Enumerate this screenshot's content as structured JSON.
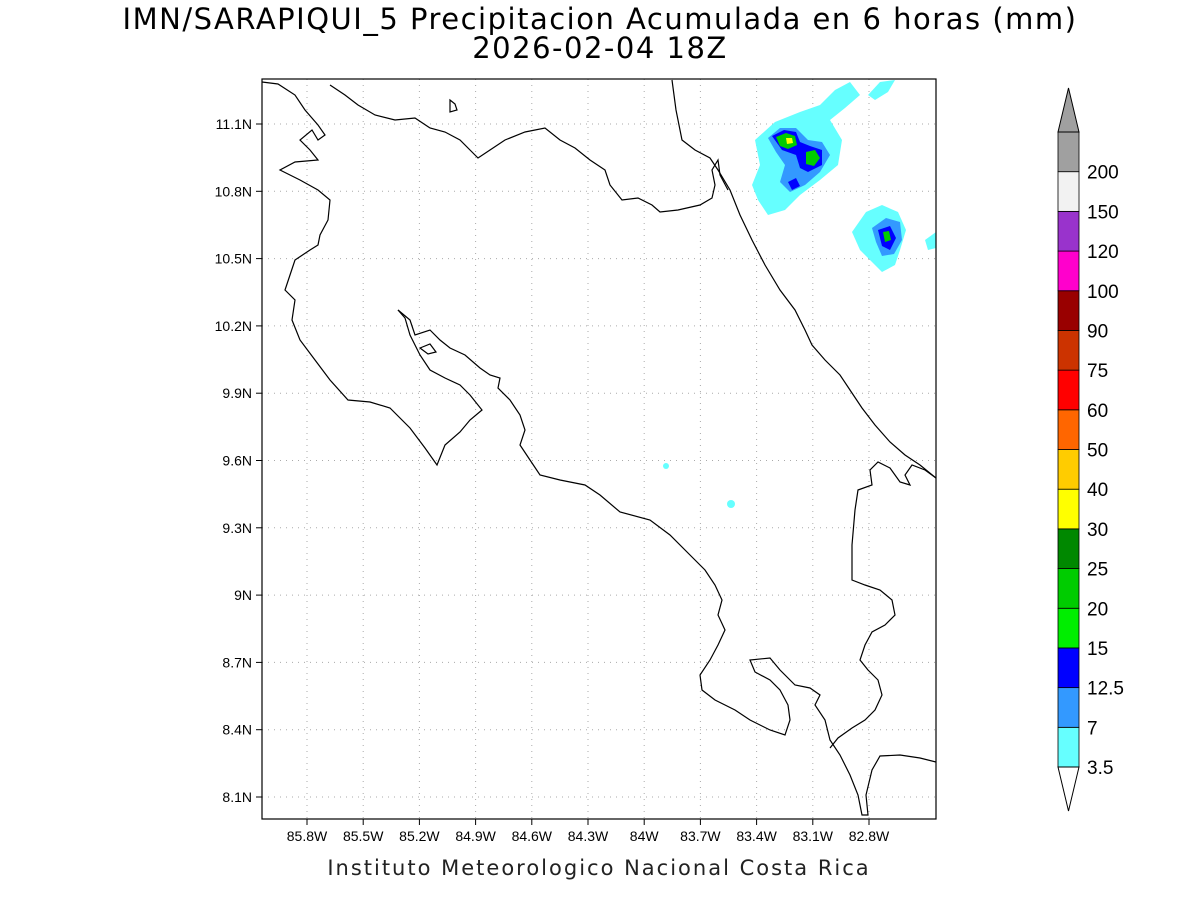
{
  "title": "IMN/SARAPIQUI_5 Precipitacion Acumulada en 6 horas (mm)",
  "subtitle": "2026-02-04 18Z",
  "footer": "Instituto Meteorologico Nacional Costa Rica",
  "axes": {
    "lon_ticks": [
      "85.8W",
      "85.5W",
      "85.2W",
      "84.9W",
      "84.6W",
      "84.3W",
      "84W",
      "83.7W",
      "83.4W",
      "83.1W",
      "82.8W"
    ],
    "lat_ticks": [
      "11.1N",
      "10.8N",
      "10.5N",
      "10.2N",
      "9.9N",
      "9.6N",
      "9.3N",
      "9N",
      "8.7N",
      "8.4N",
      "8.1N"
    ],
    "grid": "dotted"
  },
  "colorbar": {
    "levels": [
      "3.5",
      "7",
      "12.5",
      "15",
      "20",
      "25",
      "30",
      "40",
      "50",
      "60",
      "75",
      "90",
      "100",
      "120",
      "150",
      "200"
    ],
    "colors": [
      "#66ffff",
      "#3399ff",
      "#0000ff",
      "#00ee00",
      "#00cc00",
      "#008800",
      "#ffff00",
      "#ffcc00",
      "#ff6600",
      "#ff0000",
      "#cc3300",
      "#990000",
      "#ff00cc",
      "#9933cc",
      "#f2f2f2",
      "#a0a0a0"
    ],
    "over_color": "#a0a0a0",
    "under_color": "#ffffff"
  },
  "colors": {
    "coastline": "#000000",
    "grid": "#999999",
    "light_rain": "#66ffff",
    "moderate_rain": "#3399ff",
    "heavy_rain": "#0000ff",
    "very_heavy_rain": "#00cc00",
    "peak_rain": "#ffff00"
  }
}
